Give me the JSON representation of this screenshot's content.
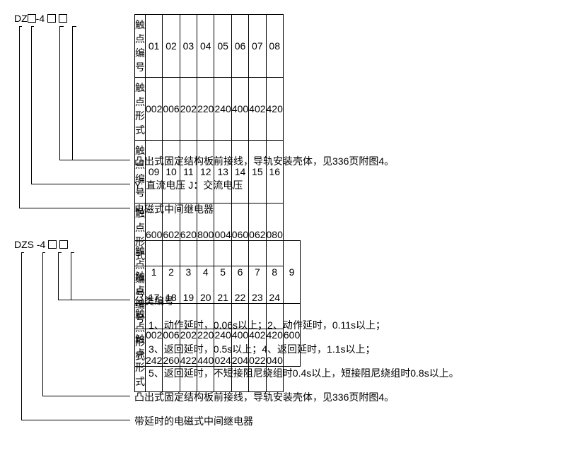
{
  "section1": {
    "code_prefix": "DZ",
    "code_mid": "-4",
    "table": {
      "row_headers": [
        "触点编号",
        "触点形式",
        "触点编号",
        "触点形式",
        "触点编号",
        "触点形式"
      ],
      "rows": [
        [
          "01",
          "02",
          "03",
          "04",
          "05",
          "06",
          "07",
          "08"
        ],
        [
          "002",
          "006",
          "202",
          "220",
          "240",
          "400",
          "402",
          "420"
        ],
        [
          "09",
          "10",
          "11",
          "12",
          "13",
          "14",
          "15",
          "16"
        ],
        [
          "600",
          "602",
          "620",
          "800",
          "004",
          "060",
          "062",
          "080"
        ],
        [
          "17",
          "18",
          "19",
          "20",
          "21",
          "22",
          "23",
          "24"
        ],
        [
          "242",
          "260",
          "422",
          "440",
          "024",
          "204",
          "022",
          "040"
        ]
      ]
    },
    "notes": [
      "凸出式固定结构板前接线，导轨安装壳体，见336页附图4。",
      "Y: 直流电压   J：交流电压",
      "电磁式中间继电器"
    ]
  },
  "section2": {
    "code_prefix": "DZS",
    "code_mid": "-4",
    "table": {
      "row_headers": [
        "触点编号",
        "触点形式"
      ],
      "rows": [
        [
          "1",
          "2",
          "3",
          "4",
          "5",
          "6",
          "7",
          "8",
          "9"
        ],
        [
          "002",
          "006",
          "202",
          "220",
          "240",
          "400",
          "402",
          "420",
          "600"
        ]
      ]
    },
    "notes": [
      "分类编号",
      "1、动作延时，0.06s以上；2、动作延时，0.11s以上；",
      "3、返回延时，0.5s以上；4、返回延时，1.1s以上；",
      "5、返回延时，不短接阻尼绕组时0.4s以上，短接阻尼绕组时0.8s以上。",
      "凸出式固定结构板前接线，导轨安装壳体，见336页附图4。",
      "带延时的电磁式中间继电器"
    ]
  }
}
